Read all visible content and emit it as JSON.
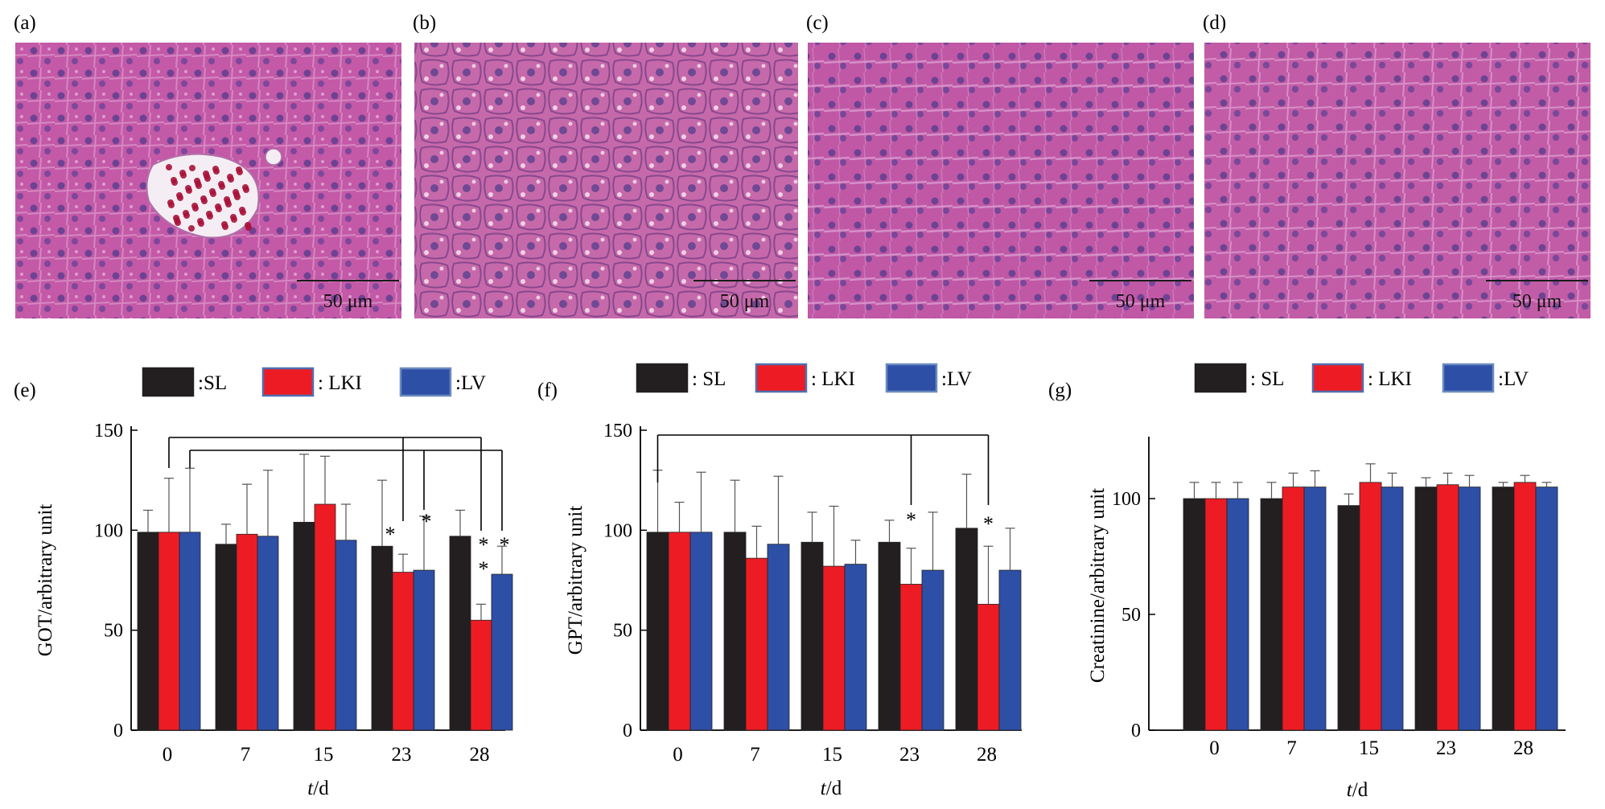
{
  "image_panels": [
    {
      "label": "(a)",
      "scale_text": "50 μm",
      "vessel": true,
      "base_color": "#c45aa8"
    },
    {
      "label": "(b)",
      "scale_text": "50 μm",
      "vessel": false,
      "base_color": "#c66aaa"
    },
    {
      "label": "(c)",
      "scale_text": "50 μm",
      "vessel": false,
      "base_color": "#c058a6"
    },
    {
      "label": "(d)",
      "scale_text": "50 μm",
      "vessel": false,
      "base_color": "#c35ca8"
    }
  ],
  "legend_colors": {
    "SL": "#231f20",
    "LKI": "#ed1c24",
    "LV": "#2e4fa6",
    "LKI_border": "#4f6fb0",
    "LV_border": "#6b8ac0"
  },
  "chart_data": [
    {
      "panel_label": "(e)",
      "type": "bar",
      "legend": [
        ":SL",
        ": LKI",
        ":LV"
      ],
      "ylabel": "GOT/arbitrary unit",
      "xlabel_italic": "t",
      "xlabel_rest": "/d",
      "categories": [
        "0",
        "7",
        "15",
        "23",
        "28"
      ],
      "ylim": [
        0,
        150
      ],
      "yticks": [
        0,
        50,
        100,
        150
      ],
      "series": [
        {
          "name": "SL",
          "values": [
            99,
            93,
            104,
            92,
            97
          ],
          "errors": [
            11,
            10,
            34,
            33,
            13
          ]
        },
        {
          "name": "LKI",
          "values": [
            99,
            98,
            113,
            79,
            55
          ],
          "errors": [
            27,
            25,
            24,
            9,
            8
          ]
        },
        {
          "name": "LV",
          "values": [
            99,
            97,
            95,
            80,
            78
          ],
          "errors": [
            32,
            33,
            18,
            27,
            14
          ]
        }
      ],
      "significance": [
        "*",
        "*",
        "*",
        "*",
        "*"
      ]
    },
    {
      "panel_label": "(f)",
      "type": "bar",
      "legend": [
        ": SL",
        ": LKI",
        ":LV"
      ],
      "ylabel": "GPT/arbitrary unit",
      "xlabel_italic": "t",
      "xlabel_rest": "/d",
      "categories": [
        "0",
        "7",
        "15",
        "23",
        "28"
      ],
      "ylim": [
        0,
        150
      ],
      "yticks": [
        0,
        50,
        100,
        150
      ],
      "series": [
        {
          "name": "SL",
          "values": [
            99,
            99,
            94,
            94,
            101
          ],
          "errors": [
            31,
            26,
            15,
            11,
            27
          ]
        },
        {
          "name": "LKI",
          "values": [
            99,
            86,
            82,
            73,
            63
          ],
          "errors": [
            15,
            16,
            30,
            18,
            29
          ]
        },
        {
          "name": "LV",
          "values": [
            99,
            93,
            83,
            80,
            80
          ],
          "errors": [
            30,
            34,
            12,
            29,
            21
          ]
        }
      ],
      "significance": [
        "*",
        "*"
      ]
    },
    {
      "panel_label": "(g)",
      "type": "bar",
      "legend": [
        ": SL",
        ": LKI",
        ":LV"
      ],
      "ylabel": "Creatinine/arbitrary unit",
      "xlabel_italic": "t",
      "xlabel_rest": "/d",
      "categories": [
        "0",
        "7",
        "15",
        "23",
        "28"
      ],
      "ylim": [
        0,
        125
      ],
      "yticks": [
        0,
        50,
        100
      ],
      "series": [
        {
          "name": "SL",
          "values": [
            100,
            100,
            97,
            105,
            105
          ],
          "errors": [
            7,
            7,
            5,
            4,
            2
          ]
        },
        {
          "name": "LKI",
          "values": [
            100,
            105,
            107,
            106,
            107
          ],
          "errors": [
            7,
            6,
            8,
            5,
            3
          ]
        },
        {
          "name": "LV",
          "values": [
            100,
            105,
            105,
            105,
            105
          ],
          "errors": [
            7,
            7,
            6,
            5,
            2
          ]
        }
      ]
    }
  ]
}
